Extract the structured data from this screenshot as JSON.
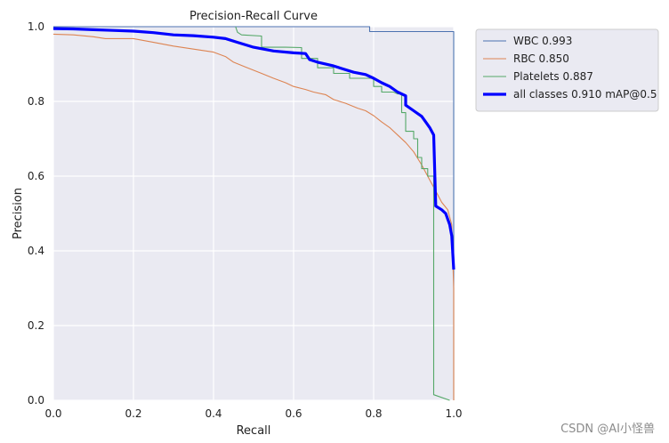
{
  "chart_data": {
    "type": "line",
    "title": "Precision-Recall Curve",
    "xlabel": "Recall",
    "ylabel": "Precision",
    "xlim": [
      0.0,
      1.0
    ],
    "ylim": [
      0.0,
      1.0
    ],
    "xticks": [
      "0.0",
      "0.2",
      "0.4",
      "0.6",
      "0.8",
      "1.0"
    ],
    "yticks": [
      "0.0",
      "0.2",
      "0.4",
      "0.6",
      "0.8",
      "1.0"
    ],
    "grid": true,
    "legend_position": "outside-top-right",
    "series": [
      {
        "name": "WBC 0.993",
        "color": "#4c72b0",
        "line": "thin",
        "points": [
          [
            0.0,
            1.0
          ],
          [
            0.79,
            1.0
          ],
          [
            0.79,
            0.987
          ],
          [
            0.9,
            0.987
          ],
          [
            1.0,
            0.987
          ],
          [
            1.0,
            0.0
          ]
        ]
      },
      {
        "name": "RBC 0.850",
        "color": "#dd8452",
        "line": "thin",
        "points": [
          [
            0.0,
            0.98
          ],
          [
            0.05,
            0.978
          ],
          [
            0.1,
            0.973
          ],
          [
            0.13,
            0.968
          ],
          [
            0.2,
            0.968
          ],
          [
            0.25,
            0.958
          ],
          [
            0.3,
            0.948
          ],
          [
            0.35,
            0.94
          ],
          [
            0.4,
            0.932
          ],
          [
            0.43,
            0.92
          ],
          [
            0.45,
            0.905
          ],
          [
            0.48,
            0.892
          ],
          [
            0.52,
            0.875
          ],
          [
            0.55,
            0.862
          ],
          [
            0.58,
            0.85
          ],
          [
            0.6,
            0.84
          ],
          [
            0.63,
            0.832
          ],
          [
            0.65,
            0.825
          ],
          [
            0.68,
            0.818
          ],
          [
            0.7,
            0.805
          ],
          [
            0.73,
            0.795
          ],
          [
            0.76,
            0.782
          ],
          [
            0.78,
            0.775
          ],
          [
            0.8,
            0.762
          ],
          [
            0.82,
            0.745
          ],
          [
            0.84,
            0.73
          ],
          [
            0.86,
            0.71
          ],
          [
            0.88,
            0.69
          ],
          [
            0.9,
            0.665
          ],
          [
            0.92,
            0.63
          ],
          [
            0.94,
            0.59
          ],
          [
            0.955,
            0.56
          ],
          [
            0.97,
            0.53
          ],
          [
            0.985,
            0.51
          ],
          [
            0.995,
            0.47
          ],
          [
            1.0,
            0.3
          ],
          [
            1.0,
            0.0
          ]
        ]
      },
      {
        "name": "Platelets 0.887",
        "color": "#55a868",
        "line": "thin",
        "points": [
          [
            0.455,
            1.0
          ],
          [
            0.46,
            0.985
          ],
          [
            0.47,
            0.978
          ],
          [
            0.52,
            0.975
          ],
          [
            0.52,
            0.945
          ],
          [
            0.58,
            0.945
          ],
          [
            0.62,
            0.944
          ],
          [
            0.62,
            0.915
          ],
          [
            0.66,
            0.915
          ],
          [
            0.66,
            0.89
          ],
          [
            0.7,
            0.89
          ],
          [
            0.7,
            0.875
          ],
          [
            0.74,
            0.875
          ],
          [
            0.74,
            0.862
          ],
          [
            0.8,
            0.862
          ],
          [
            0.8,
            0.84
          ],
          [
            0.82,
            0.84
          ],
          [
            0.82,
            0.825
          ],
          [
            0.85,
            0.825
          ],
          [
            0.86,
            0.82
          ],
          [
            0.87,
            0.82
          ],
          [
            0.87,
            0.77
          ],
          [
            0.88,
            0.77
          ],
          [
            0.88,
            0.72
          ],
          [
            0.9,
            0.72
          ],
          [
            0.9,
            0.7
          ],
          [
            0.91,
            0.7
          ],
          [
            0.91,
            0.65
          ],
          [
            0.92,
            0.65
          ],
          [
            0.92,
            0.62
          ],
          [
            0.935,
            0.62
          ],
          [
            0.935,
            0.6
          ],
          [
            0.95,
            0.6
          ],
          [
            0.95,
            0.015
          ],
          [
            0.99,
            0.0
          ]
        ]
      },
      {
        "name": "all classes 0.910 mAP@0.5",
        "color": "#0000ff",
        "line": "thick",
        "points": [
          [
            0.0,
            0.995
          ],
          [
            0.05,
            0.994
          ],
          [
            0.1,
            0.992
          ],
          [
            0.15,
            0.99
          ],
          [
            0.2,
            0.988
          ],
          [
            0.25,
            0.984
          ],
          [
            0.3,
            0.978
          ],
          [
            0.35,
            0.976
          ],
          [
            0.4,
            0.972
          ],
          [
            0.43,
            0.968
          ],
          [
            0.46,
            0.958
          ],
          [
            0.5,
            0.945
          ],
          [
            0.55,
            0.935
          ],
          [
            0.6,
            0.93
          ],
          [
            0.63,
            0.928
          ],
          [
            0.64,
            0.912
          ],
          [
            0.66,
            0.905
          ],
          [
            0.7,
            0.895
          ],
          [
            0.72,
            0.888
          ],
          [
            0.75,
            0.878
          ],
          [
            0.78,
            0.872
          ],
          [
            0.8,
            0.862
          ],
          [
            0.82,
            0.85
          ],
          [
            0.84,
            0.84
          ],
          [
            0.86,
            0.825
          ],
          [
            0.88,
            0.815
          ],
          [
            0.88,
            0.79
          ],
          [
            0.9,
            0.775
          ],
          [
            0.92,
            0.76
          ],
          [
            0.93,
            0.745
          ],
          [
            0.94,
            0.73
          ],
          [
            0.95,
            0.71
          ],
          [
            0.955,
            0.52
          ],
          [
            0.97,
            0.51
          ],
          [
            0.98,
            0.5
          ],
          [
            0.99,
            0.47
          ],
          [
            0.995,
            0.44
          ],
          [
            1.0,
            0.35
          ]
        ]
      }
    ]
  },
  "watermark": "CSDN @AI小怪兽"
}
